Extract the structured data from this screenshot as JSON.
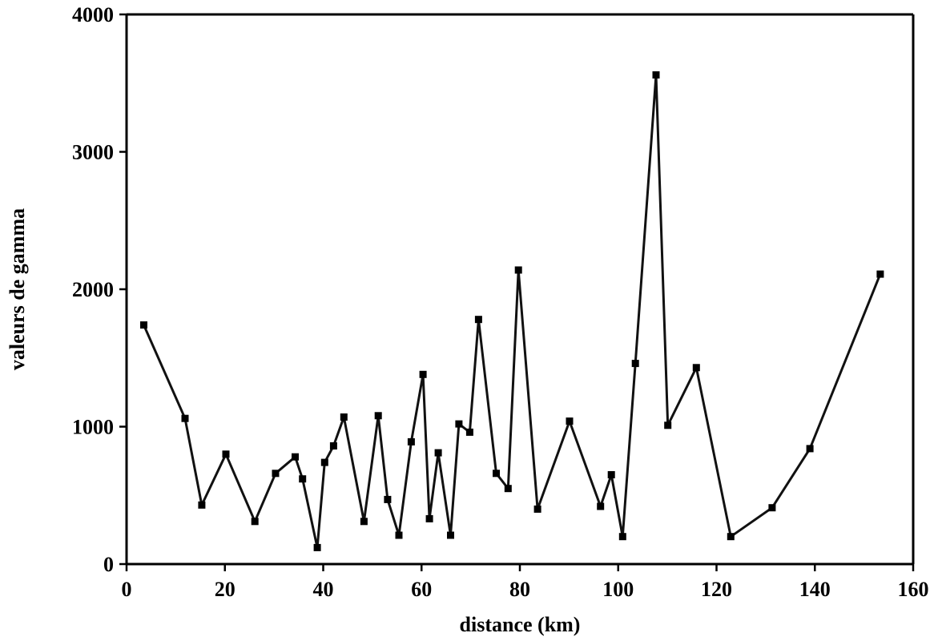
{
  "chart_data": {
    "type": "line",
    "title": "",
    "xlabel": "distance (km)",
    "ylabel": "valeurs de gamma",
    "xlim": [
      0,
      160
    ],
    "ylim": [
      0,
      4000
    ],
    "x_ticks": [
      "0",
      "20",
      "40",
      "60",
      "80",
      "100",
      "120",
      "140",
      "160"
    ],
    "y_ticks": [
      "0",
      "1000",
      "2000",
      "3000",
      "4000"
    ],
    "grid": false,
    "marker": "square",
    "line_color": "#111111",
    "series": [
      {
        "x": [
          3.5,
          11.9,
          15.3,
          20.2,
          26.1,
          30.3,
          34.3,
          35.8,
          38.8,
          40.3,
          42.1,
          44.2,
          48.3,
          51.2,
          53.1,
          55.4,
          57.9,
          60.3,
          61.6,
          63.4,
          65.9,
          67.6,
          69.8,
          71.6,
          75.2,
          77.6,
          79.7,
          83.6,
          90.1,
          96.4,
          98.6,
          100.9,
          103.5,
          107.7,
          110.1,
          115.9,
          122.9,
          131.3,
          139.0,
          153.3
        ],
        "y": [
          1740,
          1060,
          430,
          800,
          310,
          660,
          780,
          620,
          120,
          740,
          860,
          1070,
          310,
          1080,
          470,
          210,
          890,
          1380,
          330,
          810,
          210,
          1020,
          960,
          1780,
          660,
          550,
          2140,
          400,
          1040,
          420,
          650,
          200,
          1460,
          3560,
          1010,
          1430,
          200,
          410,
          840,
          2110
        ]
      }
    ]
  }
}
